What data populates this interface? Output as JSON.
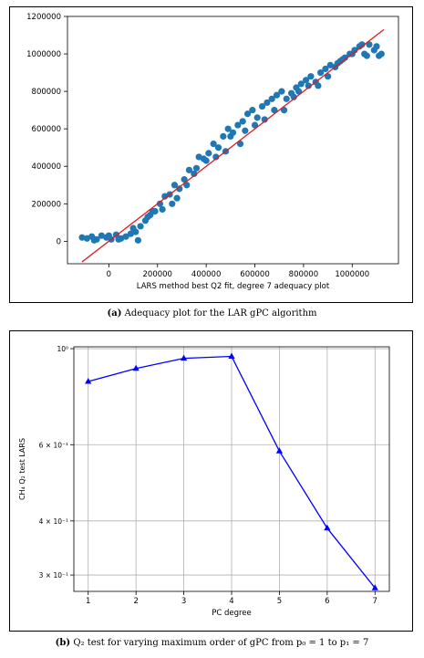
{
  "figure_a": {
    "caption_label": "(a)",
    "caption_text": "Adequacy plot for the LAR gPC algorithm"
  },
  "figure_b": {
    "caption_label": "(b)",
    "caption_text": "Q₂ test for varying maximum order of gPC from p₀ = 1 to p₁ = 7"
  },
  "colors": {
    "scatter": "#1f77b4",
    "fit_line": "#e31a1c",
    "series_b": "#0000ff"
  },
  "chart_data": [
    {
      "type": "scatter",
      "title": "",
      "xlabel": "LARS method best Q2 fit, degree 7 adequacy plot",
      "ylabel": "",
      "xlim": [
        -170000,
        1190000
      ],
      "ylim": [
        -120000,
        1200000
      ],
      "x_ticks": [
        0,
        200000,
        400000,
        600000,
        800000,
        1000000
      ],
      "x_tick_labels": [
        "0",
        "200000",
        "400000",
        "600000",
        "800000",
        "1000000"
      ],
      "y_ticks": [
        0,
        200000,
        400000,
        600000,
        800000,
        1000000,
        1200000
      ],
      "y_tick_labels": [
        "0",
        "200000",
        "400000",
        "600000",
        "800000",
        "1000000",
        "1200000"
      ],
      "grid": false,
      "reference_line": {
        "x": [
          -110000,
          1130000
        ],
        "y": [
          -110000,
          1130000
        ]
      },
      "x": [
        -110000,
        -90000,
        -70000,
        -50000,
        -30000,
        -10000,
        10000,
        30000,
        50000,
        70000,
        90000,
        110000,
        130000,
        150000,
        170000,
        190000,
        210000,
        230000,
        250000,
        270000,
        290000,
        310000,
        330000,
        350000,
        370000,
        390000,
        410000,
        430000,
        450000,
        470000,
        490000,
        510000,
        530000,
        550000,
        570000,
        590000,
        610000,
        630000,
        650000,
        670000,
        690000,
        710000,
        730000,
        750000,
        770000,
        790000,
        810000,
        830000,
        850000,
        870000,
        890000,
        910000,
        930000,
        950000,
        970000,
        990000,
        1010000,
        1030000,
        1050000,
        1070000,
        1090000,
        1110000,
        -60000,
        0,
        40000,
        100000,
        160000,
        220000,
        280000,
        360000,
        440000,
        500000,
        560000,
        640000,
        720000,
        780000,
        860000,
        940000,
        1000000,
        1060000,
        1120000,
        120000,
        180000,
        260000,
        320000,
        400000,
        480000,
        540000,
        600000,
        680000,
        760000,
        820000,
        900000,
        960000,
        1040000,
        1100000
      ],
      "y": [
        20000,
        15000,
        25000,
        10000,
        30000,
        20000,
        10000,
        35000,
        15000,
        25000,
        40000,
        50000,
        80000,
        110000,
        140000,
        160000,
        200000,
        240000,
        250000,
        300000,
        280000,
        330000,
        380000,
        360000,
        450000,
        440000,
        470000,
        520000,
        500000,
        560000,
        600000,
        580000,
        620000,
        640000,
        680000,
        700000,
        660000,
        720000,
        740000,
        760000,
        780000,
        800000,
        760000,
        790000,
        820000,
        840000,
        860000,
        880000,
        850000,
        900000,
        920000,
        940000,
        930000,
        960000,
        980000,
        1000000,
        1020000,
        1040000,
        1000000,
        1050000,
        1020000,
        990000,
        5000,
        30000,
        10000,
        70000,
        130000,
        170000,
        230000,
        390000,
        450000,
        560000,
        590000,
        650000,
        700000,
        800000,
        830000,
        950000,
        1000000,
        990000,
        1000000,
        5000,
        160000,
        200000,
        300000,
        430000,
        480000,
        520000,
        620000,
        700000,
        770000,
        830000,
        880000,
        970000,
        1050000,
        1040000
      ]
    },
    {
      "type": "line",
      "title": "",
      "xlabel": "PC degree",
      "ylabel": "CH₄ Q₂ test LARS",
      "yscale": "log",
      "ylim": [
        0.275,
        1.01
      ],
      "xlim": [
        0.7,
        7.3
      ],
      "x_ticks": [
        1,
        2,
        3,
        4,
        5,
        6,
        7
      ],
      "x_tick_labels": [
        "1",
        "2",
        "3",
        "4",
        "5",
        "6",
        "7"
      ],
      "y_ticks": [
        1.0,
        0.6,
        0.4,
        0.3
      ],
      "y_tick_labels": [
        "10⁰",
        "6 × 10⁻¹",
        "4 × 10⁻¹",
        "3 × 10⁻¹"
      ],
      "grid": true,
      "series": [
        {
          "x": [
            1,
            2,
            3,
            4,
            5,
            6,
            7
          ],
          "values": [
            0.84,
            0.9,
            0.95,
            0.96,
            0.58,
            0.385,
            0.28
          ],
          "marker": "triangle"
        }
      ]
    }
  ]
}
